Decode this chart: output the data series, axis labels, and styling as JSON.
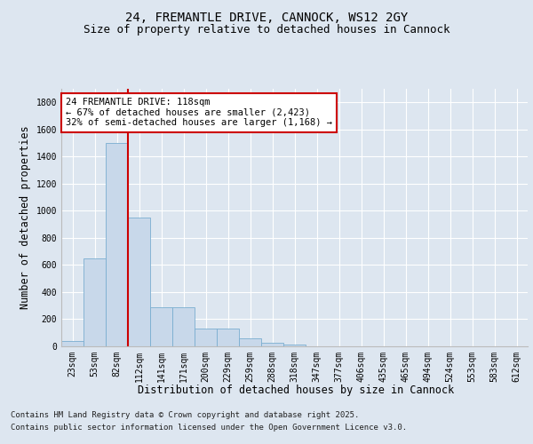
{
  "title_line1": "24, FREMANTLE DRIVE, CANNOCK, WS12 2GY",
  "title_line2": "Size of property relative to detached houses in Cannock",
  "xlabel": "Distribution of detached houses by size in Cannock",
  "ylabel": "Number of detached properties",
  "categories": [
    "23sqm",
    "53sqm",
    "82sqm",
    "112sqm",
    "141sqm",
    "171sqm",
    "200sqm",
    "229sqm",
    "259sqm",
    "288sqm",
    "318sqm",
    "347sqm",
    "377sqm",
    "406sqm",
    "435sqm",
    "465sqm",
    "494sqm",
    "524sqm",
    "553sqm",
    "583sqm",
    "612sqm"
  ],
  "values": [
    40,
    650,
    1500,
    950,
    290,
    290,
    130,
    130,
    60,
    25,
    10,
    0,
    0,
    0,
    0,
    0,
    0,
    0,
    0,
    0,
    0
  ],
  "bar_color": "#c8d8ea",
  "bar_edgecolor": "#7aaed0",
  "annotation_text": "24 FREMANTLE DRIVE: 118sqm\n← 67% of detached houses are smaller (2,423)\n32% of semi-detached houses are larger (1,168) →",
  "annotation_box_color": "#ffffff",
  "annotation_box_edgecolor": "#cc0000",
  "redline_color": "#cc0000",
  "vline_position": 2.5,
  "ylim": [
    0,
    1900
  ],
  "yticks": [
    0,
    200,
    400,
    600,
    800,
    1000,
    1200,
    1400,
    1600,
    1800
  ],
  "background_color": "#dde6f0",
  "plot_bg_color": "#dde6f0",
  "grid_color": "#ffffff",
  "footer_line1": "Contains HM Land Registry data © Crown copyright and database right 2025.",
  "footer_line2": "Contains public sector information licensed under the Open Government Licence v3.0.",
  "title_fontsize": 10,
  "subtitle_fontsize": 9,
  "axis_label_fontsize": 8.5,
  "tick_fontsize": 7,
  "annotation_fontsize": 7.5,
  "footer_fontsize": 6.5
}
